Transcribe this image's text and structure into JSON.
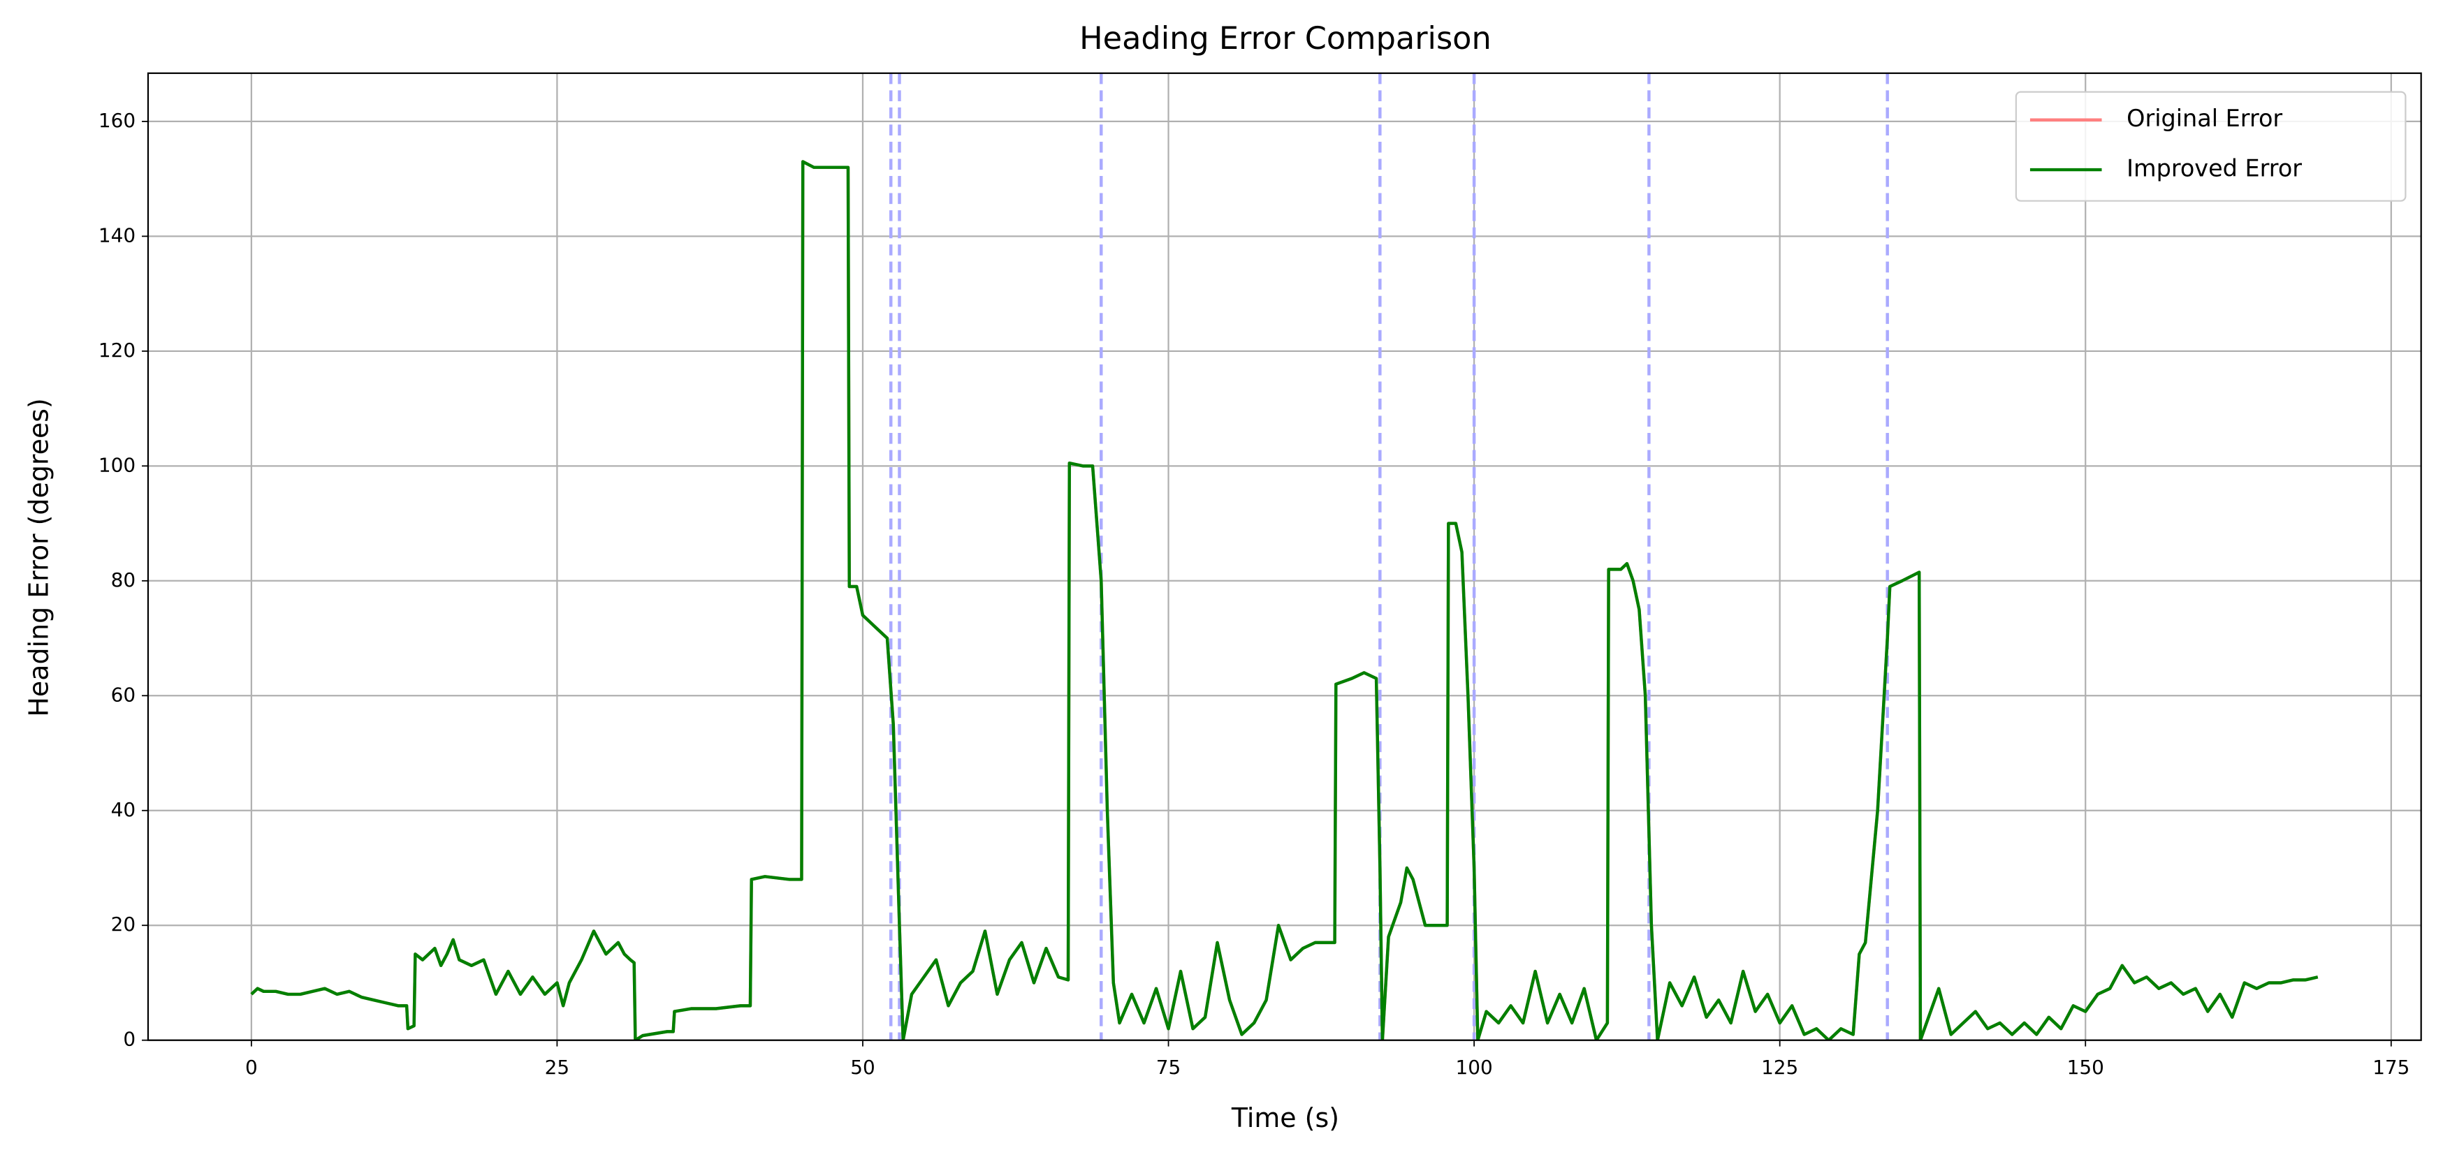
{
  "chart_data": {
    "type": "line",
    "title": "Heading Error Comparison",
    "x_label": "Time (s)",
    "y_label": "Heading Error (degrees)",
    "xlim": [
      -8.45,
      177.45
    ],
    "ylim": [
      0,
      168.4
    ],
    "xticks": [
      0,
      25,
      50,
      75,
      100,
      125,
      150,
      175
    ],
    "yticks": [
      0,
      20,
      40,
      60,
      80,
      100,
      120,
      140,
      160
    ],
    "grid": true,
    "legend": "upper right",
    "vlines": [
      52.3,
      53.0,
      69.5,
      92.3,
      100.0,
      114.3,
      133.8
    ],
    "vline_color": "#aaaaff",
    "x": [
      0,
      0.5,
      1,
      2,
      3,
      4,
      5,
      6,
      7,
      8,
      9,
      10,
      11,
      12,
      12.7,
      12.8,
      13.3,
      13.4,
      14,
      15,
      15.5,
      16,
      16.5,
      17,
      18,
      19,
      19.5,
      20,
      21,
      22,
      23,
      24,
      25,
      25.5,
      26,
      27,
      28,
      29,
      30,
      30.5,
      31,
      31.3,
      31.4,
      32,
      34,
      34.5,
      34.6,
      36,
      38,
      40,
      40.8,
      40.9,
      42,
      44,
      45,
      45.1,
      46,
      47,
      48,
      48.8,
      48.9,
      49.5,
      50,
      51,
      52,
      52.5,
      53,
      53.3,
      54,
      55,
      56,
      57,
      58,
      59,
      60,
      61,
      62,
      63,
      64,
      65,
      66,
      66.8,
      66.9,
      68,
      68.8,
      69.5,
      70,
      70.5,
      71,
      72,
      73,
      74,
      75,
      76,
      77,
      78,
      79,
      80,
      81,
      82,
      83,
      84,
      85,
      86,
      87,
      88,
      88.6,
      88.7,
      90,
      91,
      92,
      92.3,
      92.5,
      93,
      94,
      94.5,
      95,
      96,
      97,
      97.8,
      97.9,
      98.5,
      99,
      99.5,
      100,
      100.3,
      101,
      102,
      103,
      104,
      105,
      106,
      107,
      108,
      109,
      110,
      110.9,
      111,
      112,
      112.5,
      113,
      113.5,
      114,
      114.5,
      115,
      116,
      117,
      118,
      119,
      120,
      121,
      122,
      123,
      124,
      125,
      126,
      127,
      128,
      129,
      130,
      131,
      131.5,
      132,
      133,
      133.8,
      134,
      135,
      136.4,
      136.5,
      137,
      138,
      139,
      140,
      141,
      142,
      143,
      144,
      145,
      146,
      147,
      148,
      149,
      150,
      151,
      152,
      153,
      154,
      155,
      156,
      157,
      158,
      159,
      160,
      161,
      162,
      163,
      164,
      165,
      166,
      167,
      168,
      169
    ],
    "series": [
      {
        "name": "Original Error",
        "color": "#ff7f7f",
        "values": [
          8,
          9,
          8.5,
          8.5,
          8,
          8,
          8.5,
          9,
          8,
          8.5,
          7.5,
          7,
          6.5,
          6,
          6,
          2,
          2.5,
          15,
          14,
          16,
          13,
          15,
          17.5,
          14,
          13,
          14,
          11,
          8,
          12,
          8,
          11,
          8,
          10,
          6,
          10,
          14,
          19,
          15,
          17,
          15,
          14,
          13.5,
          0,
          0.8,
          1.5,
          1.5,
          5,
          5.5,
          5.5,
          6,
          6,
          28,
          28.5,
          28,
          28,
          153,
          152,
          152,
          152,
          152,
          79,
          79,
          74,
          72,
          70,
          55,
          20,
          0,
          8,
          11,
          14,
          6,
          10,
          12,
          19,
          8,
          14,
          17,
          10,
          16,
          11,
          10.5,
          100.5,
          100,
          100,
          80,
          40,
          10,
          3,
          8,
          3,
          9,
          2,
          12,
          2,
          4,
          17,
          7,
          1,
          3,
          7,
          20,
          14,
          16,
          17,
          17,
          17,
          62,
          63,
          64,
          63,
          30,
          0,
          18,
          24,
          30,
          28,
          20,
          20,
          20,
          90,
          90,
          85,
          60,
          30,
          0,
          5,
          3,
          6,
          3,
          12,
          3,
          8,
          3,
          9,
          0,
          3,
          82,
          82,
          83,
          80,
          75,
          60,
          20,
          0,
          10,
          6,
          11,
          4,
          7,
          3,
          12,
          5,
          8,
          3,
          6,
          1,
          2,
          0,
          2,
          1,
          15,
          17,
          40,
          70,
          79,
          80,
          81.5,
          0,
          3,
          9,
          1,
          3,
          5,
          2,
          3,
          1,
          3,
          1,
          4,
          2,
          6,
          5,
          8,
          9,
          13,
          10,
          11,
          9,
          10,
          8,
          9,
          5,
          8,
          4,
          10,
          9,
          10,
          10,
          10.5,
          10.5,
          11
        ]
      },
      {
        "name": "Improved Error",
        "color": "#008000",
        "values": [
          8,
          9,
          8.5,
          8.5,
          8,
          8,
          8.5,
          9,
          8,
          8.5,
          7.5,
          7,
          6.5,
          6,
          6,
          2,
          2.5,
          15,
          14,
          16,
          13,
          15,
          17.5,
          14,
          13,
          14,
          11,
          8,
          12,
          8,
          11,
          8,
          10,
          6,
          10,
          14,
          19,
          15,
          17,
          15,
          14,
          13.5,
          0,
          0.8,
          1.5,
          1.5,
          5,
          5.5,
          5.5,
          6,
          6,
          28,
          28.5,
          28,
          28,
          153,
          152,
          152,
          152,
          152,
          79,
          79,
          74,
          72,
          70,
          55,
          20,
          0,
          8,
          11,
          14,
          6,
          10,
          12,
          19,
          8,
          14,
          17,
          10,
          16,
          11,
          10.5,
          100.5,
          100,
          100,
          80,
          40,
          10,
          3,
          8,
          3,
          9,
          2,
          12,
          2,
          4,
          17,
          7,
          1,
          3,
          7,
          20,
          14,
          16,
          17,
          17,
          17,
          62,
          63,
          64,
          63,
          30,
          0,
          18,
          24,
          30,
          28,
          20,
          20,
          20,
          90,
          90,
          85,
          60,
          30,
          0,
          5,
          3,
          6,
          3,
          12,
          3,
          8,
          3,
          9,
          0,
          3,
          82,
          82,
          83,
          80,
          75,
          60,
          20,
          0,
          10,
          6,
          11,
          4,
          7,
          3,
          12,
          5,
          8,
          3,
          6,
          1,
          2,
          0,
          2,
          1,
          15,
          17,
          40,
          70,
          79,
          80,
          81.5,
          0,
          3,
          9,
          1,
          3,
          5,
          2,
          3,
          1,
          3,
          1,
          4,
          2,
          6,
          5,
          8,
          9,
          13,
          10,
          11,
          9,
          10,
          8,
          9,
          5,
          8,
          4,
          10,
          9,
          10,
          10,
          10.5,
          10.5,
          11
        ]
      }
    ]
  }
}
